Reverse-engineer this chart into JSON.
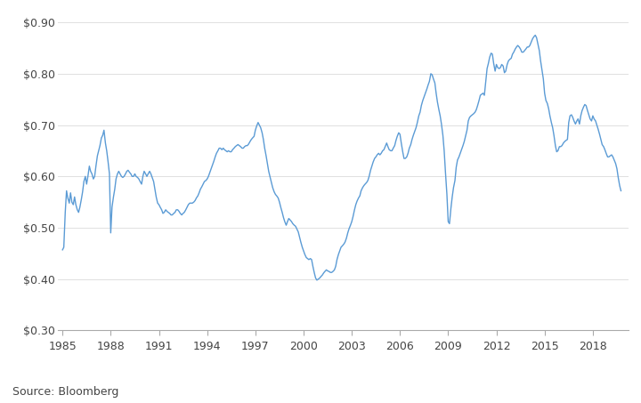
{
  "source_text": "Source: Bloomberg",
  "line_color": "#5B9BD5",
  "line_width": 1.0,
  "background_color": "#ffffff",
  "ylim": [
    0.3,
    0.92
  ],
  "yticks": [
    0.3,
    0.4,
    0.5,
    0.6,
    0.7,
    0.8,
    0.9
  ],
  "xlim": [
    1984.7,
    2020.2
  ],
  "xtick_labels": [
    "1985",
    "1988",
    "1991",
    "1994",
    "1997",
    "2000",
    "2003",
    "2006",
    "2009",
    "2012",
    "2015",
    "2018"
  ],
  "xtick_years": [
    1985,
    1988,
    1991,
    1994,
    1997,
    2000,
    2003,
    2006,
    2009,
    2012,
    2015,
    2018
  ],
  "data": [
    [
      1985.0,
      0.457
    ],
    [
      1985.08,
      0.462
    ],
    [
      1985.17,
      0.53
    ],
    [
      1985.25,
      0.572
    ],
    [
      1985.33,
      0.558
    ],
    [
      1985.42,
      0.548
    ],
    [
      1985.5,
      0.568
    ],
    [
      1985.58,
      0.55
    ],
    [
      1985.67,
      0.545
    ],
    [
      1985.75,
      0.56
    ],
    [
      1985.83,
      0.545
    ],
    [
      1985.92,
      0.535
    ],
    [
      1986.0,
      0.53
    ],
    [
      1986.08,
      0.54
    ],
    [
      1986.17,
      0.555
    ],
    [
      1986.25,
      0.57
    ],
    [
      1986.33,
      0.59
    ],
    [
      1986.42,
      0.6
    ],
    [
      1986.5,
      0.585
    ],
    [
      1986.58,
      0.6
    ],
    [
      1986.67,
      0.62
    ],
    [
      1986.75,
      0.61
    ],
    [
      1986.83,
      0.605
    ],
    [
      1986.92,
      0.595
    ],
    [
      1987.0,
      0.6
    ],
    [
      1987.08,
      0.62
    ],
    [
      1987.17,
      0.64
    ],
    [
      1987.25,
      0.65
    ],
    [
      1987.33,
      0.66
    ],
    [
      1987.42,
      0.675
    ],
    [
      1987.5,
      0.68
    ],
    [
      1987.58,
      0.69
    ],
    [
      1987.67,
      0.665
    ],
    [
      1987.75,
      0.65
    ],
    [
      1987.83,
      0.63
    ],
    [
      1987.92,
      0.605
    ],
    [
      1988.0,
      0.49
    ],
    [
      1988.08,
      0.54
    ],
    [
      1988.17,
      0.56
    ],
    [
      1988.25,
      0.575
    ],
    [
      1988.33,
      0.595
    ],
    [
      1988.42,
      0.605
    ],
    [
      1988.5,
      0.61
    ],
    [
      1988.58,
      0.605
    ],
    [
      1988.67,
      0.6
    ],
    [
      1988.75,
      0.598
    ],
    [
      1988.83,
      0.6
    ],
    [
      1988.92,
      0.605
    ],
    [
      1989.0,
      0.61
    ],
    [
      1989.08,
      0.612
    ],
    [
      1989.17,
      0.608
    ],
    [
      1989.25,
      0.605
    ],
    [
      1989.33,
      0.6
    ],
    [
      1989.42,
      0.6
    ],
    [
      1989.5,
      0.605
    ],
    [
      1989.58,
      0.6
    ],
    [
      1989.67,
      0.598
    ],
    [
      1989.75,
      0.595
    ],
    [
      1989.83,
      0.59
    ],
    [
      1989.92,
      0.585
    ],
    [
      1990.0,
      0.6
    ],
    [
      1990.08,
      0.61
    ],
    [
      1990.17,
      0.605
    ],
    [
      1990.25,
      0.6
    ],
    [
      1990.33,
      0.605
    ],
    [
      1990.42,
      0.61
    ],
    [
      1990.5,
      0.605
    ],
    [
      1990.58,
      0.598
    ],
    [
      1990.67,
      0.59
    ],
    [
      1990.75,
      0.575
    ],
    [
      1990.83,
      0.56
    ],
    [
      1990.92,
      0.548
    ],
    [
      1991.0,
      0.545
    ],
    [
      1991.08,
      0.54
    ],
    [
      1991.17,
      0.535
    ],
    [
      1991.25,
      0.528
    ],
    [
      1991.33,
      0.53
    ],
    [
      1991.42,
      0.535
    ],
    [
      1991.5,
      0.532
    ],
    [
      1991.58,
      0.53
    ],
    [
      1991.67,
      0.528
    ],
    [
      1991.75,
      0.525
    ],
    [
      1991.83,
      0.525
    ],
    [
      1991.92,
      0.528
    ],
    [
      1992.0,
      0.53
    ],
    [
      1992.08,
      0.535
    ],
    [
      1992.17,
      0.535
    ],
    [
      1992.25,
      0.532
    ],
    [
      1992.33,
      0.528
    ],
    [
      1992.42,
      0.525
    ],
    [
      1992.5,
      0.528
    ],
    [
      1992.58,
      0.53
    ],
    [
      1992.67,
      0.535
    ],
    [
      1992.75,
      0.54
    ],
    [
      1992.83,
      0.545
    ],
    [
      1992.92,
      0.548
    ],
    [
      1993.0,
      0.548
    ],
    [
      1993.08,
      0.548
    ],
    [
      1993.17,
      0.55
    ],
    [
      1993.25,
      0.553
    ],
    [
      1993.33,
      0.558
    ],
    [
      1993.42,
      0.562
    ],
    [
      1993.5,
      0.568
    ],
    [
      1993.58,
      0.575
    ],
    [
      1993.67,
      0.58
    ],
    [
      1993.75,
      0.585
    ],
    [
      1993.83,
      0.59
    ],
    [
      1993.92,
      0.592
    ],
    [
      1994.0,
      0.595
    ],
    [
      1994.08,
      0.6
    ],
    [
      1994.17,
      0.608
    ],
    [
      1994.25,
      0.615
    ],
    [
      1994.33,
      0.622
    ],
    [
      1994.42,
      0.63
    ],
    [
      1994.5,
      0.638
    ],
    [
      1994.58,
      0.645
    ],
    [
      1994.67,
      0.65
    ],
    [
      1994.75,
      0.655
    ],
    [
      1994.83,
      0.655
    ],
    [
      1994.92,
      0.652
    ],
    [
      1995.0,
      0.655
    ],
    [
      1995.08,
      0.652
    ],
    [
      1995.17,
      0.65
    ],
    [
      1995.25,
      0.648
    ],
    [
      1995.33,
      0.65
    ],
    [
      1995.42,
      0.648
    ],
    [
      1995.5,
      0.648
    ],
    [
      1995.58,
      0.652
    ],
    [
      1995.67,
      0.655
    ],
    [
      1995.75,
      0.658
    ],
    [
      1995.83,
      0.66
    ],
    [
      1995.92,
      0.662
    ],
    [
      1996.0,
      0.66
    ],
    [
      1996.08,
      0.658
    ],
    [
      1996.17,
      0.655
    ],
    [
      1996.25,
      0.655
    ],
    [
      1996.33,
      0.658
    ],
    [
      1996.42,
      0.66
    ],
    [
      1996.5,
      0.66
    ],
    [
      1996.58,
      0.663
    ],
    [
      1996.67,
      0.668
    ],
    [
      1996.75,
      0.672
    ],
    [
      1996.83,
      0.675
    ],
    [
      1996.92,
      0.678
    ],
    [
      1997.0,
      0.69
    ],
    [
      1997.08,
      0.698
    ],
    [
      1997.17,
      0.705
    ],
    [
      1997.25,
      0.7
    ],
    [
      1997.33,
      0.695
    ],
    [
      1997.42,
      0.685
    ],
    [
      1997.5,
      0.672
    ],
    [
      1997.58,
      0.655
    ],
    [
      1997.67,
      0.64
    ],
    [
      1997.75,
      0.625
    ],
    [
      1997.83,
      0.61
    ],
    [
      1997.92,
      0.598
    ],
    [
      1998.0,
      0.588
    ],
    [
      1998.08,
      0.578
    ],
    [
      1998.17,
      0.57
    ],
    [
      1998.25,
      0.565
    ],
    [
      1998.33,
      0.562
    ],
    [
      1998.42,
      0.558
    ],
    [
      1998.5,
      0.55
    ],
    [
      1998.58,
      0.54
    ],
    [
      1998.67,
      0.53
    ],
    [
      1998.75,
      0.52
    ],
    [
      1998.83,
      0.512
    ],
    [
      1998.92,
      0.505
    ],
    [
      1999.0,
      0.512
    ],
    [
      1999.08,
      0.518
    ],
    [
      1999.17,
      0.515
    ],
    [
      1999.25,
      0.512
    ],
    [
      1999.33,
      0.508
    ],
    [
      1999.42,
      0.505
    ],
    [
      1999.5,
      0.503
    ],
    [
      1999.58,
      0.498
    ],
    [
      1999.67,
      0.492
    ],
    [
      1999.75,
      0.482
    ],
    [
      1999.83,
      0.472
    ],
    [
      1999.92,
      0.462
    ],
    [
      2000.0,
      0.455
    ],
    [
      2000.08,
      0.448
    ],
    [
      2000.17,
      0.442
    ],
    [
      2000.25,
      0.44
    ],
    [
      2000.33,
      0.438
    ],
    [
      2000.42,
      0.44
    ],
    [
      2000.5,
      0.438
    ],
    [
      2000.58,
      0.425
    ],
    [
      2000.67,
      0.412
    ],
    [
      2000.75,
      0.402
    ],
    [
      2000.83,
      0.398
    ],
    [
      2000.92,
      0.4
    ],
    [
      2001.0,
      0.402
    ],
    [
      2001.08,
      0.405
    ],
    [
      2001.17,
      0.408
    ],
    [
      2001.25,
      0.412
    ],
    [
      2001.33,
      0.415
    ],
    [
      2001.42,
      0.418
    ],
    [
      2001.5,
      0.416
    ],
    [
      2001.58,
      0.415
    ],
    [
      2001.67,
      0.413
    ],
    [
      2001.75,
      0.413
    ],
    [
      2001.83,
      0.415
    ],
    [
      2001.92,
      0.418
    ],
    [
      2002.0,
      0.425
    ],
    [
      2002.08,
      0.438
    ],
    [
      2002.17,
      0.448
    ],
    [
      2002.25,
      0.455
    ],
    [
      2002.33,
      0.462
    ],
    [
      2002.42,
      0.465
    ],
    [
      2002.5,
      0.468
    ],
    [
      2002.58,
      0.472
    ],
    [
      2002.67,
      0.48
    ],
    [
      2002.75,
      0.49
    ],
    [
      2002.83,
      0.498
    ],
    [
      2002.92,
      0.505
    ],
    [
      2003.0,
      0.512
    ],
    [
      2003.08,
      0.522
    ],
    [
      2003.17,
      0.535
    ],
    [
      2003.25,
      0.545
    ],
    [
      2003.33,
      0.552
    ],
    [
      2003.42,
      0.558
    ],
    [
      2003.5,
      0.562
    ],
    [
      2003.58,
      0.572
    ],
    [
      2003.67,
      0.578
    ],
    [
      2003.75,
      0.582
    ],
    [
      2003.83,
      0.585
    ],
    [
      2003.92,
      0.588
    ],
    [
      2004.0,
      0.592
    ],
    [
      2004.08,
      0.6
    ],
    [
      2004.17,
      0.612
    ],
    [
      2004.25,
      0.62
    ],
    [
      2004.33,
      0.628
    ],
    [
      2004.42,
      0.635
    ],
    [
      2004.5,
      0.638
    ],
    [
      2004.58,
      0.642
    ],
    [
      2004.67,
      0.645
    ],
    [
      2004.75,
      0.642
    ],
    [
      2004.83,
      0.645
    ],
    [
      2004.92,
      0.65
    ],
    [
      2005.0,
      0.652
    ],
    [
      2005.08,
      0.658
    ],
    [
      2005.17,
      0.665
    ],
    [
      2005.25,
      0.658
    ],
    [
      2005.33,
      0.652
    ],
    [
      2005.42,
      0.65
    ],
    [
      2005.5,
      0.65
    ],
    [
      2005.58,
      0.655
    ],
    [
      2005.67,
      0.66
    ],
    [
      2005.75,
      0.67
    ],
    [
      2005.83,
      0.678
    ],
    [
      2005.92,
      0.685
    ],
    [
      2006.0,
      0.682
    ],
    [
      2006.08,
      0.665
    ],
    [
      2006.17,
      0.648
    ],
    [
      2006.25,
      0.635
    ],
    [
      2006.33,
      0.635
    ],
    [
      2006.42,
      0.638
    ],
    [
      2006.5,
      0.645
    ],
    [
      2006.58,
      0.655
    ],
    [
      2006.67,
      0.662
    ],
    [
      2006.75,
      0.672
    ],
    [
      2006.83,
      0.68
    ],
    [
      2006.92,
      0.688
    ],
    [
      2007.0,
      0.695
    ],
    [
      2007.08,
      0.705
    ],
    [
      2007.17,
      0.718
    ],
    [
      2007.25,
      0.725
    ],
    [
      2007.33,
      0.738
    ],
    [
      2007.42,
      0.748
    ],
    [
      2007.5,
      0.755
    ],
    [
      2007.58,
      0.762
    ],
    [
      2007.67,
      0.77
    ],
    [
      2007.75,
      0.778
    ],
    [
      2007.83,
      0.785
    ],
    [
      2007.92,
      0.8
    ],
    [
      2008.0,
      0.798
    ],
    [
      2008.08,
      0.79
    ],
    [
      2008.17,
      0.782
    ],
    [
      2008.25,
      0.762
    ],
    [
      2008.33,
      0.745
    ],
    [
      2008.42,
      0.73
    ],
    [
      2008.5,
      0.718
    ],
    [
      2008.58,
      0.702
    ],
    [
      2008.67,
      0.68
    ],
    [
      2008.75,
      0.65
    ],
    [
      2008.83,
      0.608
    ],
    [
      2008.92,
      0.565
    ],
    [
      2009.0,
      0.512
    ],
    [
      2009.08,
      0.508
    ],
    [
      2009.17,
      0.538
    ],
    [
      2009.25,
      0.56
    ],
    [
      2009.33,
      0.578
    ],
    [
      2009.42,
      0.592
    ],
    [
      2009.5,
      0.618
    ],
    [
      2009.58,
      0.632
    ],
    [
      2009.67,
      0.638
    ],
    [
      2009.75,
      0.645
    ],
    [
      2009.83,
      0.652
    ],
    [
      2009.92,
      0.66
    ],
    [
      2010.0,
      0.668
    ],
    [
      2010.08,
      0.678
    ],
    [
      2010.17,
      0.69
    ],
    [
      2010.25,
      0.708
    ],
    [
      2010.33,
      0.715
    ],
    [
      2010.42,
      0.718
    ],
    [
      2010.5,
      0.72
    ],
    [
      2010.58,
      0.722
    ],
    [
      2010.67,
      0.725
    ],
    [
      2010.75,
      0.73
    ],
    [
      2010.83,
      0.738
    ],
    [
      2010.92,
      0.748
    ],
    [
      2011.0,
      0.758
    ],
    [
      2011.08,
      0.76
    ],
    [
      2011.17,
      0.762
    ],
    [
      2011.25,
      0.758
    ],
    [
      2011.33,
      0.782
    ],
    [
      2011.42,
      0.81
    ],
    [
      2011.5,
      0.82
    ],
    [
      2011.58,
      0.832
    ],
    [
      2011.67,
      0.84
    ],
    [
      2011.75,
      0.838
    ],
    [
      2011.83,
      0.82
    ],
    [
      2011.92,
      0.805
    ],
    [
      2012.0,
      0.818
    ],
    [
      2012.08,
      0.812
    ],
    [
      2012.17,
      0.81
    ],
    [
      2012.25,
      0.812
    ],
    [
      2012.33,
      0.818
    ],
    [
      2012.42,
      0.815
    ],
    [
      2012.5,
      0.802
    ],
    [
      2012.58,
      0.805
    ],
    [
      2012.67,
      0.818
    ],
    [
      2012.75,
      0.825
    ],
    [
      2012.83,
      0.828
    ],
    [
      2012.92,
      0.83
    ],
    [
      2013.0,
      0.838
    ],
    [
      2013.08,
      0.842
    ],
    [
      2013.17,
      0.848
    ],
    [
      2013.25,
      0.852
    ],
    [
      2013.33,
      0.855
    ],
    [
      2013.42,
      0.852
    ],
    [
      2013.5,
      0.848
    ],
    [
      2013.58,
      0.842
    ],
    [
      2013.67,
      0.842
    ],
    [
      2013.75,
      0.845
    ],
    [
      2013.83,
      0.848
    ],
    [
      2013.92,
      0.852
    ],
    [
      2014.0,
      0.852
    ],
    [
      2014.08,
      0.855
    ],
    [
      2014.17,
      0.862
    ],
    [
      2014.25,
      0.868
    ],
    [
      2014.33,
      0.872
    ],
    [
      2014.42,
      0.875
    ],
    [
      2014.5,
      0.87
    ],
    [
      2014.58,
      0.858
    ],
    [
      2014.67,
      0.845
    ],
    [
      2014.75,
      0.825
    ],
    [
      2014.83,
      0.808
    ],
    [
      2014.92,
      0.79
    ],
    [
      2015.0,
      0.762
    ],
    [
      2015.08,
      0.748
    ],
    [
      2015.17,
      0.742
    ],
    [
      2015.25,
      0.732
    ],
    [
      2015.33,
      0.718
    ],
    [
      2015.42,
      0.705
    ],
    [
      2015.5,
      0.695
    ],
    [
      2015.58,
      0.68
    ],
    [
      2015.67,
      0.66
    ],
    [
      2015.75,
      0.648
    ],
    [
      2015.83,
      0.65
    ],
    [
      2015.92,
      0.658
    ],
    [
      2016.0,
      0.658
    ],
    [
      2016.08,
      0.66
    ],
    [
      2016.17,
      0.665
    ],
    [
      2016.25,
      0.668
    ],
    [
      2016.33,
      0.67
    ],
    [
      2016.42,
      0.672
    ],
    [
      2016.5,
      0.705
    ],
    [
      2016.58,
      0.718
    ],
    [
      2016.67,
      0.72
    ],
    [
      2016.75,
      0.715
    ],
    [
      2016.83,
      0.708
    ],
    [
      2016.92,
      0.702
    ],
    [
      2017.0,
      0.708
    ],
    [
      2017.08,
      0.712
    ],
    [
      2017.17,
      0.702
    ],
    [
      2017.25,
      0.718
    ],
    [
      2017.33,
      0.728
    ],
    [
      2017.42,
      0.735
    ],
    [
      2017.5,
      0.74
    ],
    [
      2017.58,
      0.738
    ],
    [
      2017.67,
      0.728
    ],
    [
      2017.75,
      0.72
    ],
    [
      2017.83,
      0.712
    ],
    [
      2017.92,
      0.708
    ],
    [
      2018.0,
      0.718
    ],
    [
      2018.08,
      0.712
    ],
    [
      2018.17,
      0.708
    ],
    [
      2018.25,
      0.7
    ],
    [
      2018.33,
      0.692
    ],
    [
      2018.42,
      0.682
    ],
    [
      2018.5,
      0.672
    ],
    [
      2018.58,
      0.662
    ],
    [
      2018.67,
      0.658
    ],
    [
      2018.75,
      0.652
    ],
    [
      2018.83,
      0.645
    ],
    [
      2018.92,
      0.638
    ],
    [
      2019.0,
      0.638
    ],
    [
      2019.08,
      0.64
    ],
    [
      2019.17,
      0.642
    ],
    [
      2019.25,
      0.638
    ],
    [
      2019.33,
      0.632
    ],
    [
      2019.42,
      0.625
    ],
    [
      2019.5,
      0.615
    ],
    [
      2019.58,
      0.598
    ],
    [
      2019.67,
      0.582
    ],
    [
      2019.75,
      0.572
    ]
  ]
}
